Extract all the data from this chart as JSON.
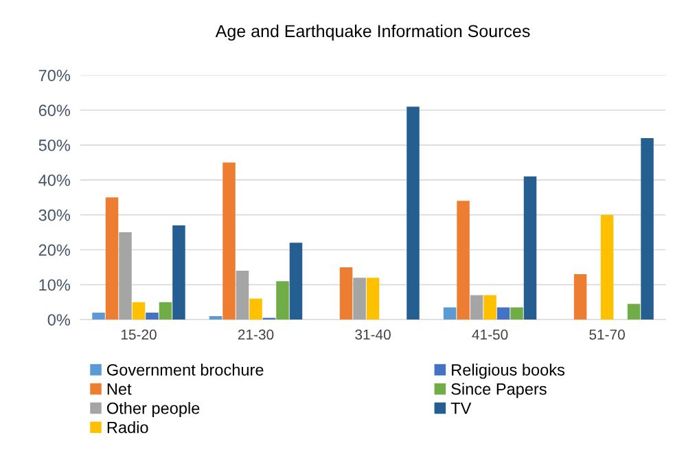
{
  "chart_data": {
    "type": "bar",
    "title": "Age and Earthquake Information Sources",
    "categories": [
      "15-20",
      "21-30",
      "31-40",
      "41-50",
      "51-70"
    ],
    "series": [
      {
        "name": "Government brochure",
        "color": "#5b9bd5",
        "values": [
          2,
          1,
          0,
          3.5,
          0
        ]
      },
      {
        "name": "Net",
        "color": "#ed7d31",
        "values": [
          35,
          45,
          15,
          34,
          13
        ]
      },
      {
        "name": "Other people",
        "color": "#a5a5a5",
        "values": [
          25,
          14,
          12,
          7,
          0
        ]
      },
      {
        "name": "Radio",
        "color": "#ffc000",
        "values": [
          5,
          6,
          12,
          7,
          30
        ]
      },
      {
        "name": "Religious books",
        "color": "#4472c4",
        "values": [
          2,
          0.5,
          0,
          3.5,
          0
        ]
      },
      {
        "name": "Since Papers",
        "color": "#70ad47",
        "values": [
          5,
          11,
          0,
          3.5,
          4.5
        ]
      },
      {
        "name": "TV",
        "color": "#255e91",
        "values": [
          27,
          22,
          61,
          41,
          52
        ]
      }
    ],
    "ylim": [
      0,
      70
    ],
    "yticks": [
      {
        "value": 0,
        "label": "0%"
      },
      {
        "value": 10,
        "label": "10%"
      },
      {
        "value": 20,
        "label": "20%"
      },
      {
        "value": 30,
        "label": "30%"
      },
      {
        "value": 40,
        "label": "40%"
      },
      {
        "value": 50,
        "label": "50%"
      },
      {
        "value": 60,
        "label": "60%"
      },
      {
        "value": 70,
        "label": "70%"
      }
    ],
    "grid": "y",
    "legend": "bottom"
  }
}
